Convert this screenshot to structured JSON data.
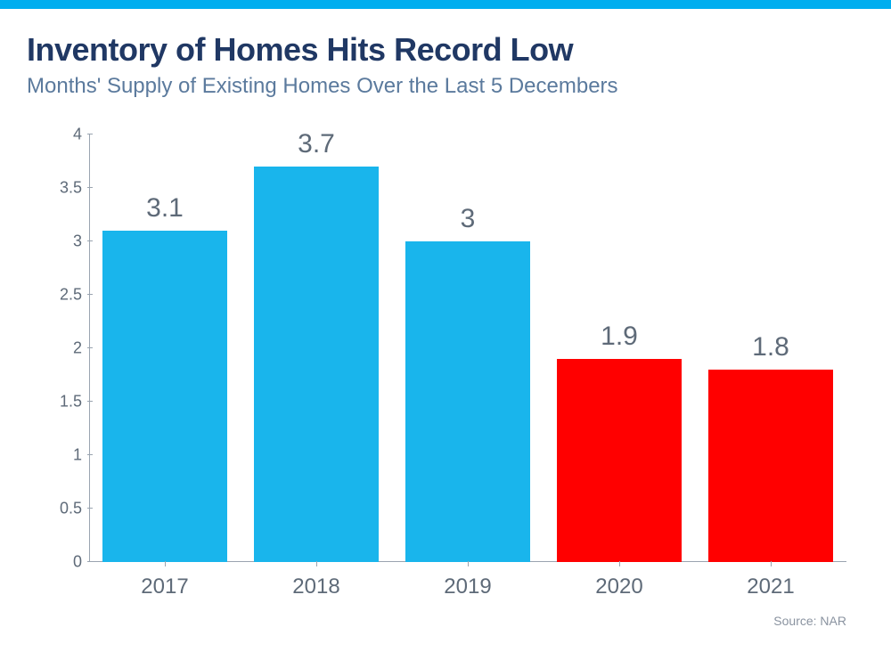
{
  "accent_bar_color": "#00aeef",
  "title": {
    "text": "Inventory of Homes Hits Record Low",
    "color": "#203864",
    "fontsize": 36
  },
  "subtitle": {
    "text": "Months' Supply of Existing Homes Over the Last 5 Decembers",
    "color": "#5b7a9d",
    "fontsize": 24
  },
  "source": {
    "text": "Source: NAR",
    "color": "#8a93a0",
    "fontsize": 14
  },
  "chart": {
    "type": "bar",
    "ylim": [
      0,
      4
    ],
    "ytick_step": 0.5,
    "yticks": [
      "0",
      "0.5",
      "1",
      "1.5",
      "2",
      "2.5",
      "3",
      "3.5",
      "4"
    ],
    "axis_color": "#9aa4b0",
    "tick_font_color": "#5e6a78",
    "tick_fontsize": 18,
    "x_label_fontsize": 24,
    "x_label_color": "#5e6a78",
    "value_label_fontsize": 30,
    "value_label_color": "#5e6a78",
    "bar_width_pct": 82,
    "categories": [
      "2017",
      "2018",
      "2019",
      "2020",
      "2021"
    ],
    "values": [
      3.1,
      3.7,
      3,
      1.9,
      1.8
    ],
    "value_labels": [
      "3.1",
      "3.7",
      "3",
      "1.9",
      "1.8"
    ],
    "bar_colors": [
      "#19b5ec",
      "#19b5ec",
      "#19b5ec",
      "#ff0000",
      "#ff0000"
    ],
    "background_color": "#ffffff"
  }
}
